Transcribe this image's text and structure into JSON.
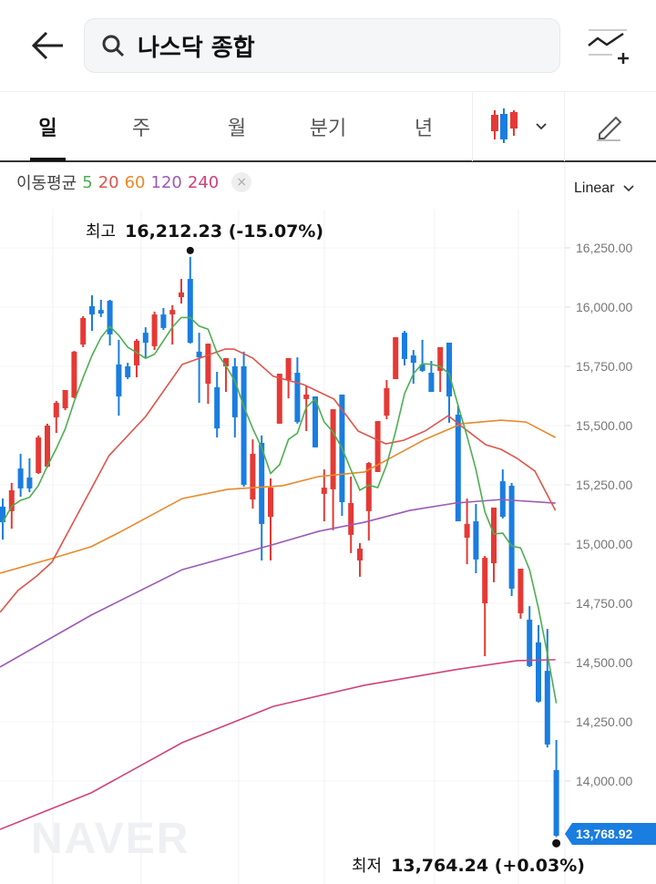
{
  "header": {
    "search_query": "나스닥 종합",
    "back_icon": "arrow-left-icon",
    "search_icon": "search-icon",
    "compare_icon": "chart-add-icon"
  },
  "tabs": [
    {
      "label": "일",
      "active": true
    },
    {
      "label": "주"
    },
    {
      "label": "월"
    },
    {
      "label": "분기"
    },
    {
      "label": "년"
    }
  ],
  "toolbar": {
    "chart_type_icon": "candlestick-icon",
    "draw_icon": "pencil-icon"
  },
  "legend": {
    "label": "이동평균",
    "periods": [
      {
        "label": "5",
        "color": "#4caf50"
      },
      {
        "label": "20",
        "color": "#e0534a"
      },
      {
        "label": "60",
        "color": "#e8892a"
      },
      {
        "label": "120",
        "color": "#9b59b6"
      },
      {
        "label": "240",
        "color": "#d0427a"
      }
    ],
    "close": "×"
  },
  "scale": {
    "label": "Linear"
  },
  "watermark": "NAVER",
  "colors": {
    "up": "#e53935",
    "down": "#1a7de0"
  },
  "chart_data": {
    "type": "candlestick",
    "ylim": [
      13565,
      16585
    ],
    "yticks": [
      "16,250.00",
      "16,000.00",
      "15,750.00",
      "15,500.00",
      "15,250.00",
      "15,000.00",
      "14,750.00",
      "14,500.00",
      "14,250.00",
      "14,000.00"
    ],
    "ytick_values": [
      16250,
      16000,
      15750,
      15500,
      15250,
      15000,
      14750,
      14500,
      14250,
      14000
    ],
    "high": {
      "label": "최고",
      "value": "16,212.23 (-15.07%)",
      "index": 21,
      "price": 16212
    },
    "low": {
      "label": "최저",
      "value": "13,764.24 (+0.03%)",
      "index": 62,
      "price": 13764
    },
    "last_price": "13,768.92",
    "ohlc": [
      [
        15158,
        15192,
        15019,
        15092
      ],
      [
        15139,
        15258,
        15065,
        15227
      ],
      [
        15319,
        15381,
        15200,
        15235
      ],
      [
        15281,
        15362,
        15219,
        15235
      ],
      [
        15300,
        15458,
        15296,
        15450
      ],
      [
        15327,
        15508,
        15323,
        15500
      ],
      [
        15535,
        15604,
        15469,
        15596
      ],
      [
        15573,
        15650,
        15565,
        15650
      ],
      [
        15619,
        15815,
        15615,
        15812
      ],
      [
        15842,
        15962,
        15831,
        15954
      ],
      [
        16004,
        16050,
        15900,
        15969
      ],
      [
        15988,
        16031,
        15958,
        15973
      ],
      [
        16027,
        16031,
        15838,
        15885
      ],
      [
        15758,
        15862,
        15542,
        15623
      ],
      [
        15750,
        15765,
        15696,
        15704
      ],
      [
        15754,
        15865,
        15704,
        15858
      ],
      [
        15892,
        15915,
        15788,
        15850
      ],
      [
        15835,
        15981,
        15819,
        15969
      ],
      [
        15969,
        15996,
        15904,
        15912
      ],
      [
        15969,
        16008,
        15842,
        15988
      ],
      [
        16042,
        16119,
        16015,
        16062
      ],
      [
        16119,
        16212,
        15846,
        15850
      ],
      [
        15812,
        15892,
        15596,
        15788
      ],
      [
        15677,
        15846,
        15592,
        15846
      ],
      [
        15662,
        15727,
        15450,
        15488
      ],
      [
        15750,
        15785,
        15642,
        15785
      ],
      [
        15750,
        15785,
        15450,
        15535
      ],
      [
        15750,
        15812,
        15242,
        15250
      ],
      [
        15188,
        15442,
        15150,
        15381
      ],
      [
        15427,
        15458,
        14931,
        15085
      ],
      [
        15115,
        15277,
        14931,
        15238
      ],
      [
        15508,
        15719,
        15508,
        15719
      ],
      [
        15692,
        15785,
        15615,
        15785
      ],
      [
        15723,
        15788,
        15508,
        15515
      ],
      [
        15612,
        15669,
        15477,
        15631
      ],
      [
        15623,
        15623,
        15408,
        15408
      ],
      [
        15212,
        15315,
        15096,
        15238
      ],
      [
        15231,
        15569,
        15058,
        15569
      ],
      [
        15631,
        15631,
        15119,
        15177
      ],
      [
        15039,
        15285,
        14962,
        15173
      ],
      [
        14931,
        15004,
        14862,
        14981
      ],
      [
        15139,
        15346,
        15015,
        15342
      ],
      [
        15304,
        15519,
        15304,
        15519
      ],
      [
        15542,
        15692,
        15527,
        15658
      ],
      [
        15696,
        15873,
        15696,
        15873
      ],
      [
        15892,
        15900,
        15754,
        15781
      ],
      [
        15796,
        15819,
        15677,
        15765
      ],
      [
        15758,
        15862,
        15727,
        15731
      ],
      [
        15723,
        15773,
        15642,
        15642
      ],
      [
        15731,
        15831,
        15642,
        15831
      ],
      [
        15850,
        15850,
        15512,
        15623
      ],
      [
        15546,
        15585,
        15096,
        15096
      ],
      [
        15027,
        15192,
        14915,
        15085
      ],
      [
        15096,
        15169,
        14877,
        14935
      ],
      [
        14750,
        14950,
        14527,
        14942
      ],
      [
        14919,
        15154,
        14839,
        15154
      ],
      [
        15265,
        15315,
        15108,
        15115
      ],
      [
        15246,
        15258,
        14781,
        14812
      ],
      [
        14708,
        14896,
        14685,
        14896
      ],
      [
        14681,
        14738,
        14481,
        14485
      ],
      [
        14585,
        14658,
        14331,
        14335
      ],
      [
        14465,
        14642,
        14142,
        14154
      ],
      [
        14046,
        14173,
        13764,
        13769
      ]
    ],
    "ma": {
      "20": [
        [
          -0.3,
          14712
        ],
        [
          1.7,
          14804
        ],
        [
          3.8,
          14865
        ],
        [
          5.5,
          14923
        ],
        [
          11.9,
          15373
        ],
        [
          16,
          15538
        ],
        [
          20.1,
          15758
        ],
        [
          24.9,
          15823
        ],
        [
          25.9,
          15823
        ],
        [
          28,
          15785
        ],
        [
          30.3,
          15708
        ],
        [
          33.7,
          15673
        ],
        [
          37.1,
          15612
        ],
        [
          39.8,
          15477
        ],
        [
          42.9,
          15423
        ],
        [
          44.9,
          15438
        ],
        [
          47.3,
          15477
        ],
        [
          49.9,
          15542
        ],
        [
          51.7,
          15488
        ],
        [
          54.1,
          15419
        ],
        [
          55.8,
          15400
        ],
        [
          57.6,
          15362
        ],
        [
          59.6,
          15308
        ],
        [
          61.9,
          15142
        ]
      ],
      "60": [
        [
          -0.3,
          14877
        ],
        [
          5.5,
          14939
        ],
        [
          9.9,
          14989
        ],
        [
          13.3,
          15054
        ],
        [
          20.1,
          15192
        ],
        [
          25.2,
          15231
        ],
        [
          31.3,
          15246
        ],
        [
          35.4,
          15285
        ],
        [
          40.5,
          15304
        ],
        [
          43.9,
          15373
        ],
        [
          47.3,
          15442
        ],
        [
          51.4,
          15508
        ],
        [
          55.8,
          15523
        ],
        [
          58.6,
          15515
        ],
        [
          61.9,
          15450
        ]
      ],
      "120": [
        [
          -0.3,
          14481
        ],
        [
          9.9,
          14700
        ],
        [
          20.1,
          14892
        ],
        [
          30.3,
          14998
        ],
        [
          35.4,
          15054
        ],
        [
          40.5,
          15092
        ],
        [
          45.6,
          15142
        ],
        [
          50.7,
          15173
        ],
        [
          55.8,
          15188
        ],
        [
          61.9,
          15173
        ]
      ],
      "240": [
        [
          -0.3,
          13796
        ],
        [
          9.9,
          13950
        ],
        [
          20.1,
          14162
        ],
        [
          30.3,
          14315
        ],
        [
          40.5,
          14404
        ],
        [
          50.7,
          14470
        ],
        [
          57.6,
          14508
        ],
        [
          61.9,
          14512
        ]
      ]
    }
  }
}
